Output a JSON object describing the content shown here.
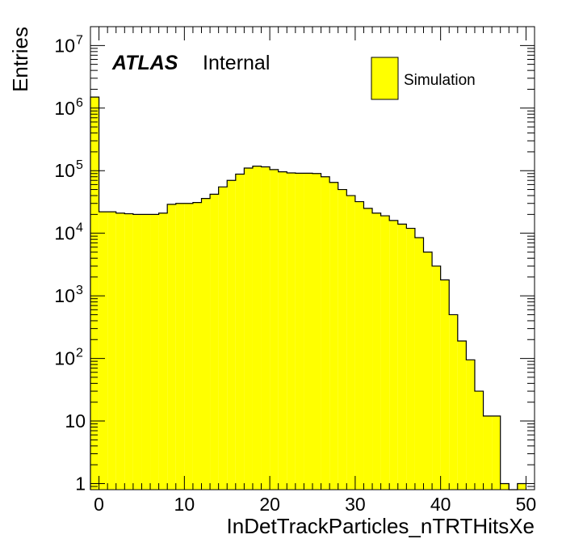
{
  "chart_data": {
    "type": "bar",
    "style": "histogram",
    "title": "",
    "xlabel": "InDetTrackParticles_nTRTHitsXe",
    "ylabel": "Entries",
    "xlim": [
      -1,
      51
    ],
    "ylim": [
      0.8,
      20000000
    ],
    "log_y": true,
    "grid": false,
    "legend_position": "top-right",
    "bin_width": 1,
    "x_ticks": [
      {
        "v": 0,
        "label": "0"
      },
      {
        "v": 10,
        "label": "10"
      },
      {
        "v": 20,
        "label": "20"
      },
      {
        "v": 30,
        "label": "30"
      },
      {
        "v": 40,
        "label": "40"
      },
      {
        "v": 50,
        "label": "50"
      }
    ],
    "y_ticks": [
      {
        "exp": 0,
        "base": "1",
        "sup": ""
      },
      {
        "exp": 1,
        "base": "10",
        "sup": ""
      },
      {
        "exp": 2,
        "base": "10",
        "sup": "2"
      },
      {
        "exp": 3,
        "base": "10",
        "sup": "3"
      },
      {
        "exp": 4,
        "base": "10",
        "sup": "4"
      },
      {
        "exp": 5,
        "base": "10",
        "sup": "5"
      },
      {
        "exp": 6,
        "base": "10",
        "sup": "6"
      },
      {
        "exp": 7,
        "base": "10",
        "sup": "7"
      }
    ],
    "fill_color": "#ffff00",
    "line_color": "#000000",
    "series": [
      {
        "name": "Simulation",
        "bin_lows": [
          -1,
          0,
          1,
          2,
          3,
          4,
          5,
          6,
          7,
          8,
          9,
          10,
          11,
          12,
          13,
          14,
          15,
          16,
          17,
          18,
          19,
          20,
          21,
          22,
          23,
          24,
          25,
          26,
          27,
          28,
          29,
          30,
          31,
          32,
          33,
          34,
          35,
          36,
          37,
          38,
          39,
          40,
          41,
          42,
          43,
          44,
          45,
          46,
          47,
          48,
          49
        ],
        "values": [
          1500000,
          22000,
          22000,
          21000,
          20500,
          20000,
          20000,
          20000,
          21000,
          29000,
          30000,
          30000,
          31000,
          36000,
          42000,
          55000,
          70000,
          88000,
          110000,
          118000,
          115000,
          104000,
          96000,
          92000,
          91000,
          91000,
          90000,
          80000,
          65000,
          50000,
          40000,
          32000,
          25000,
          21000,
          19000,
          16000,
          14000,
          12000,
          8500,
          5000,
          3000,
          1800,
          500,
          190,
          95,
          30,
          12,
          12,
          1,
          0,
          1
        ]
      }
    ]
  },
  "annotation": {
    "atlas": "ATLAS",
    "status": "Internal"
  },
  "legend": {
    "label": "Simulation"
  }
}
